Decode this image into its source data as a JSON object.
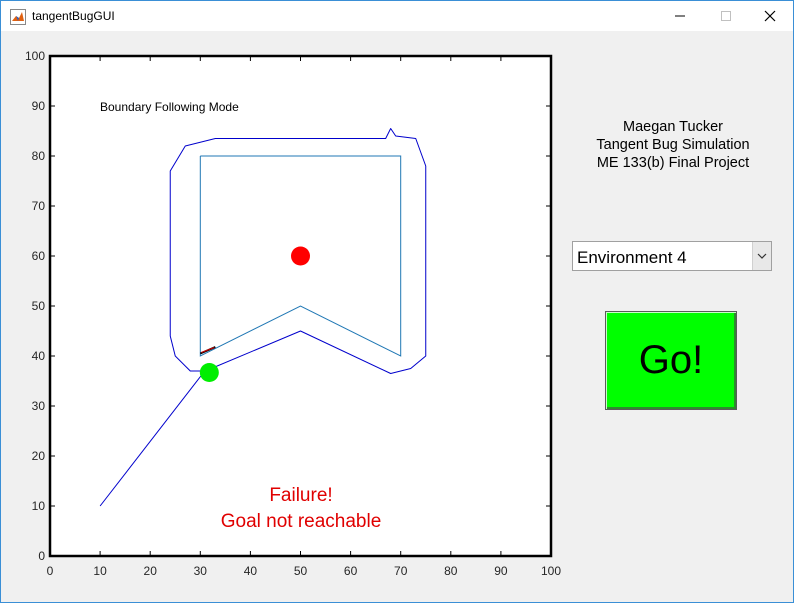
{
  "window": {
    "title": "tangentBugGUI",
    "app_icon": "matlab-icon",
    "controls": {
      "minimize": "—",
      "maximize": "☐",
      "close": "✕"
    }
  },
  "plot": {
    "mode_label": "Boundary Following Mode",
    "status_line1": "Failure!",
    "status_line2": "Goal not reachable",
    "status_color": "#e00000",
    "x_ticks": [
      "0",
      "10",
      "20",
      "30",
      "40",
      "50",
      "60",
      "70",
      "80",
      "90",
      "100"
    ],
    "y_ticks": [
      "0",
      "10",
      "20",
      "30",
      "40",
      "50",
      "60",
      "70",
      "80",
      "90",
      "100"
    ],
    "xlim": [
      0,
      100
    ],
    "ylim": [
      0,
      100
    ],
    "obstacle": [
      [
        30,
        80
      ],
      [
        70,
        80
      ],
      [
        70,
        40
      ],
      [
        50,
        50
      ],
      [
        30,
        40
      ],
      [
        30,
        80
      ]
    ],
    "obstacle_color": "#1f77b4",
    "path_color": "#0000cc",
    "path_line": [
      [
        10,
        10
      ],
      [
        30.5,
        36.5
      ]
    ],
    "boundary_path": [
      [
        31,
        37
      ],
      [
        50,
        45
      ],
      [
        68,
        36.5
      ],
      [
        72,
        37.5
      ],
      [
        75,
        40
      ],
      [
        75,
        78
      ],
      [
        73,
        83.5
      ],
      [
        69,
        84
      ],
      [
        68,
        85.5
      ],
      [
        67,
        83.5
      ],
      [
        33,
        83.5
      ],
      [
        27,
        82
      ],
      [
        24,
        77
      ],
      [
        24,
        44
      ],
      [
        25,
        40
      ],
      [
        28,
        37
      ],
      [
        31,
        37
      ]
    ],
    "goal": {
      "x": 50,
      "y": 60,
      "color": "#ff0000"
    },
    "robot": {
      "x": 31.8,
      "y": 36.7,
      "color": "#00ee00"
    },
    "sensor_segment": [
      [
        30,
        40.5
      ],
      [
        33,
        41.8
      ]
    ]
  },
  "info": {
    "name": "Maegan Tucker",
    "project": "Tangent Bug Simulation",
    "course": "ME 133(b) Final Project"
  },
  "environment_select": {
    "selected": "Environment 4"
  },
  "go_button": {
    "label": "Go!",
    "color": "#00ff00"
  }
}
